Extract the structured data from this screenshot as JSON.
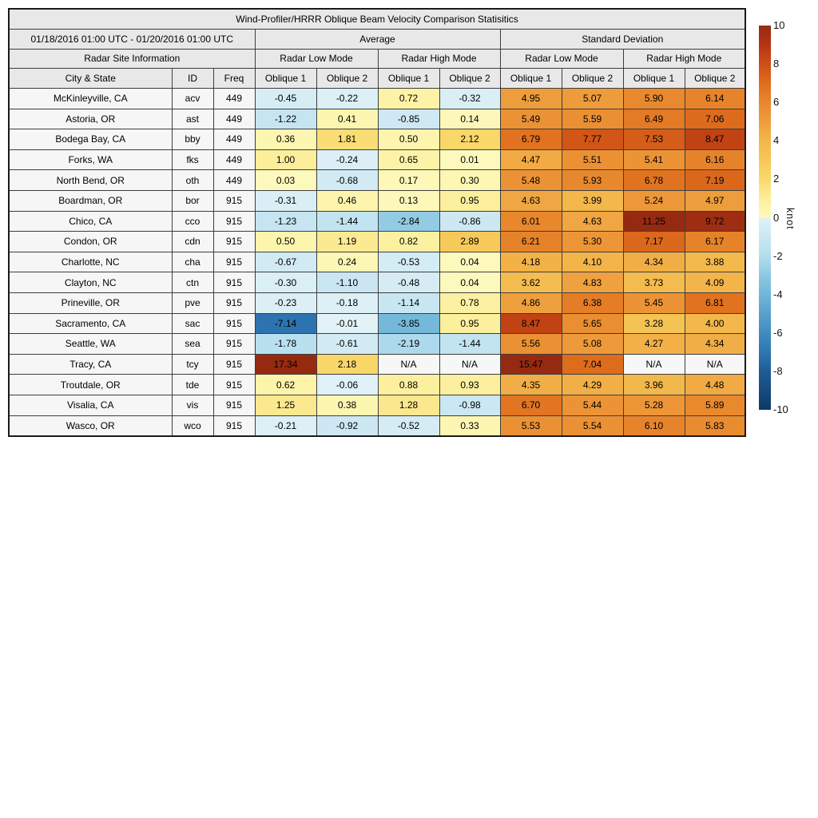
{
  "title": "Wind-Profiler/HRRR Oblique Beam Velocity Comparison Statisitics",
  "header": {
    "date_range": "01/18/2016 01:00 UTC - 01/20/2016 01:00 UTC",
    "group_average": "Average",
    "group_std": "Standard Deviation",
    "site_info": "Radar Site Information",
    "modes": [
      "Radar Low Mode",
      "Radar High Mode",
      "Radar Low Mode",
      "Radar High Mode"
    ],
    "col_headers": [
      "City & State",
      "ID",
      "Freq"
    ],
    "oblique_pair": [
      "Oblique 1",
      "Oblique 2"
    ]
  },
  "na_text": "N/A",
  "chart_data": {
    "type": "heatmap",
    "title": "Wind-Profiler/HRRR Oblique Beam Velocity Comparison Statisitics",
    "value_unit": "knot",
    "color_range": [
      -10,
      10
    ],
    "columns": [
      "Average Low Oblique 1",
      "Average Low Oblique 2",
      "Average High Oblique 1",
      "Average High Oblique 2",
      "StdDev Low Oblique 1",
      "StdDev Low Oblique 2",
      "StdDev High Oblique 1",
      "StdDev High Oblique 2"
    ],
    "rows": [
      {
        "city": "McKinleyville, CA",
        "id": "acv",
        "freq": "449",
        "values": [
          -0.45,
          -0.22,
          0.72,
          -0.32,
          4.95,
          5.07,
          5.9,
          6.14
        ]
      },
      {
        "city": "Astoria, OR",
        "id": "ast",
        "freq": "449",
        "values": [
          -1.22,
          0.41,
          -0.85,
          0.14,
          5.49,
          5.59,
          6.49,
          7.06
        ]
      },
      {
        "city": "Bodega Bay, CA",
        "id": "bby",
        "freq": "449",
        "values": [
          0.36,
          1.81,
          0.5,
          2.12,
          6.79,
          7.77,
          7.53,
          8.47
        ]
      },
      {
        "city": "Forks, WA",
        "id": "fks",
        "freq": "449",
        "values": [
          1.0,
          -0.24,
          0.65,
          0.01,
          4.47,
          5.51,
          5.41,
          6.16
        ]
      },
      {
        "city": "North Bend, OR",
        "id": "oth",
        "freq": "449",
        "values": [
          0.03,
          -0.68,
          0.17,
          0.3,
          5.48,
          5.93,
          6.78,
          7.19
        ]
      },
      {
        "city": "Boardman, OR",
        "id": "bor",
        "freq": "915",
        "values": [
          -0.31,
          0.46,
          0.13,
          0.95,
          4.63,
          3.99,
          5.24,
          4.97
        ]
      },
      {
        "city": "Chico, CA",
        "id": "cco",
        "freq": "915",
        "values": [
          -1.23,
          -1.44,
          -2.84,
          -0.86,
          6.01,
          4.63,
          11.25,
          9.72
        ]
      },
      {
        "city": "Condon, OR",
        "id": "cdn",
        "freq": "915",
        "values": [
          0.5,
          1.19,
          0.82,
          2.89,
          6.21,
          5.3,
          7.17,
          6.17
        ]
      },
      {
        "city": "Charlotte, NC",
        "id": "cha",
        "freq": "915",
        "values": [
          -0.67,
          0.24,
          -0.53,
          0.04,
          4.18,
          4.1,
          4.34,
          3.88
        ]
      },
      {
        "city": "Clayton, NC",
        "id": "ctn",
        "freq": "915",
        "values": [
          -0.3,
          -1.1,
          -0.48,
          0.04,
          3.62,
          4.83,
          3.73,
          4.09
        ]
      },
      {
        "city": "Prineville, OR",
        "id": "pve",
        "freq": "915",
        "values": [
          -0.23,
          -0.18,
          -1.14,
          0.78,
          4.86,
          6.38,
          5.45,
          6.81
        ]
      },
      {
        "city": "Sacramento, CA",
        "id": "sac",
        "freq": "915",
        "values": [
          -7.14,
          -0.01,
          -3.85,
          0.95,
          8.47,
          5.65,
          3.28,
          4.0
        ]
      },
      {
        "city": "Seattle, WA",
        "id": "sea",
        "freq": "915",
        "values": [
          -1.78,
          -0.61,
          -2.19,
          -1.44,
          5.56,
          5.08,
          4.27,
          4.34
        ]
      },
      {
        "city": "Tracy, CA",
        "id": "tcy",
        "freq": "915",
        "values": [
          17.34,
          2.18,
          null,
          null,
          15.47,
          7.04,
          null,
          null
        ]
      },
      {
        "city": "Troutdale, OR",
        "id": "tde",
        "freq": "915",
        "values": [
          0.62,
          -0.06,
          0.88,
          0.93,
          4.35,
          4.29,
          3.96,
          4.48
        ]
      },
      {
        "city": "Visalia, CA",
        "id": "vis",
        "freq": "915",
        "values": [
          1.25,
          0.38,
          1.28,
          -0.98,
          6.7,
          5.44,
          5.28,
          5.89
        ]
      },
      {
        "city": "Wasco, OR",
        "id": "wco",
        "freq": "915",
        "values": [
          -0.21,
          -0.92,
          -0.52,
          0.33,
          5.53,
          5.54,
          6.1,
          5.83
        ]
      }
    ]
  },
  "colorbar": {
    "label": "knot",
    "min": -10,
    "max": 10,
    "ticks": [
      10,
      8,
      6,
      4,
      2,
      0,
      -2,
      -4,
      -6,
      -8,
      -10
    ],
    "neg_stops": [
      [
        -10,
        "#0d3a66"
      ],
      [
        -8,
        "#1f5c94"
      ],
      [
        -7,
        "#2e77b3"
      ],
      [
        -6,
        "#3f8dbf"
      ],
      [
        -5,
        "#5ba0cc"
      ],
      [
        -4,
        "#70b6d8"
      ],
      [
        -3,
        "#8ec8e2"
      ],
      [
        -2,
        "#b3ddee"
      ],
      [
        -1.4,
        "#c3e4f0"
      ],
      [
        -1,
        "#cbe7f2"
      ],
      [
        -0.5,
        "#d5ecf4"
      ],
      [
        -0.1,
        "#dff1f7"
      ],
      [
        0,
        "#e2f2f7"
      ]
    ],
    "pos_stops": [
      [
        0,
        "#fdf9bd"
      ],
      [
        0.5,
        "#fdf5ad"
      ],
      [
        1,
        "#fcee9b"
      ],
      [
        1.5,
        "#fbe483"
      ],
      [
        2,
        "#f9d96c"
      ],
      [
        2.5,
        "#f8d161"
      ],
      [
        3,
        "#f6c757"
      ],
      [
        4,
        "#f3b74b"
      ],
      [
        5,
        "#ee9c3c"
      ],
      [
        6,
        "#e8872c"
      ],
      [
        7,
        "#de6d1d"
      ],
      [
        8,
        "#cd4f15"
      ],
      [
        9,
        "#b43513"
      ],
      [
        10,
        "#962a11"
      ]
    ]
  },
  "colors": {
    "header_bg": "#e8e8e8",
    "label_cell_bg": "#f6f6f6",
    "na_bg": "#f7f7f7",
    "grid": "#3d3d3d",
    "outer_border": "#1a1a1a",
    "text": "#000000"
  }
}
